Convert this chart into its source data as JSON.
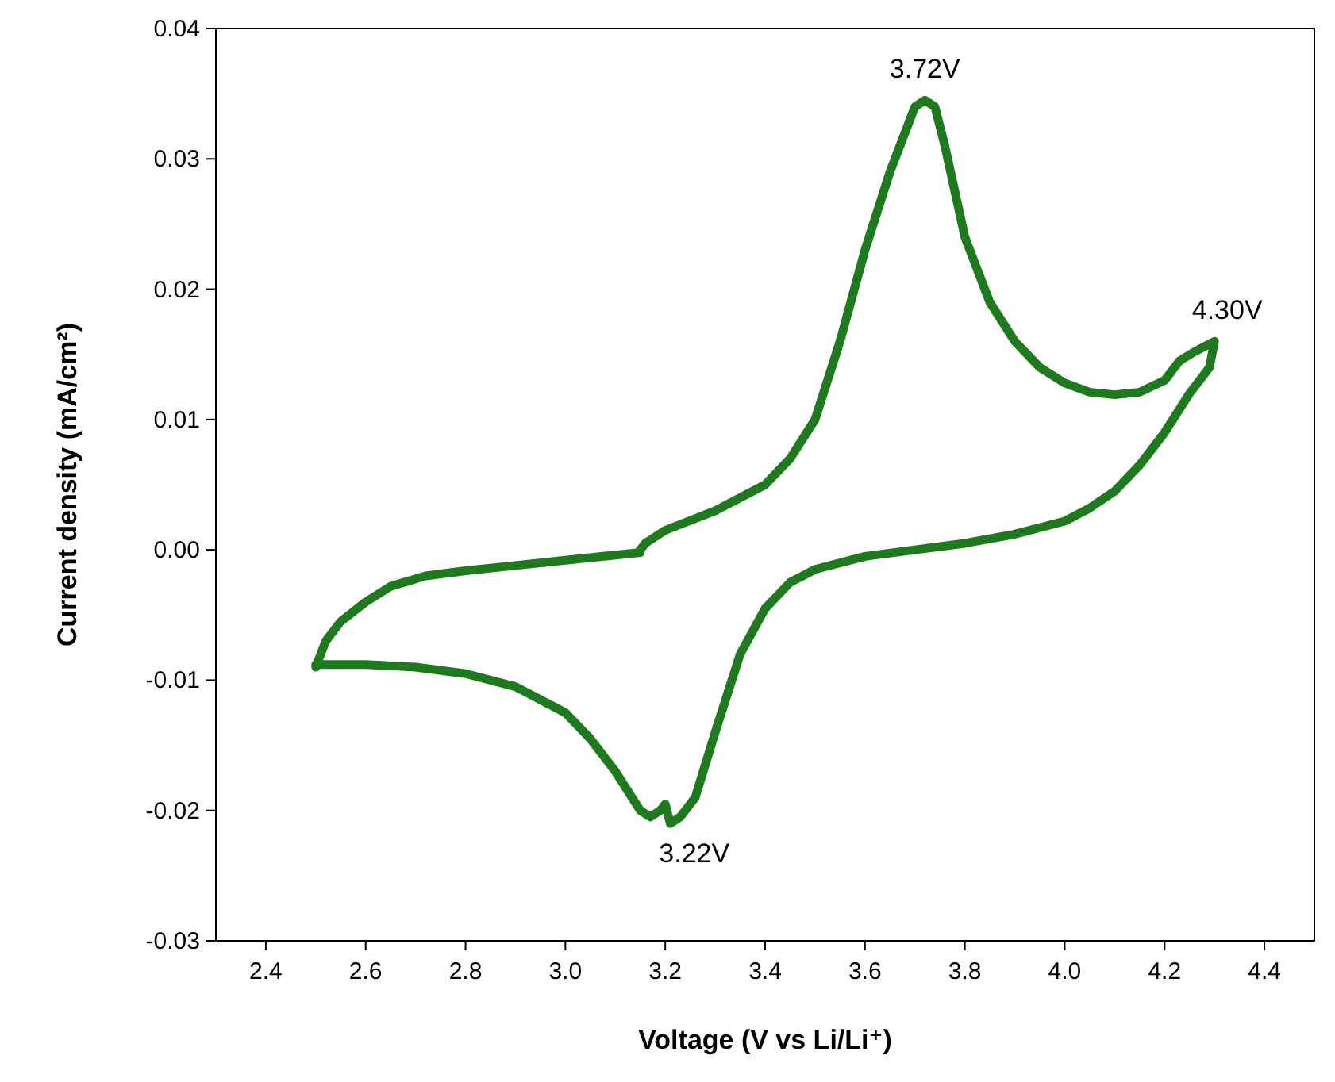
{
  "chart_data": {
    "type": "line",
    "xlabel": "Voltage (V vs Li/Li⁺)",
    "ylabel": "Current density (mA/cm²)",
    "xlim": [
      2.3,
      4.5
    ],
    "ylim": [
      -0.03,
      0.04
    ],
    "xticks": [
      {
        "value": 2.4,
        "label": "2.4"
      },
      {
        "value": 2.6,
        "label": "2.6"
      },
      {
        "value": 2.8,
        "label": "2.8"
      },
      {
        "value": 3.0,
        "label": "3.0"
      },
      {
        "value": 3.2,
        "label": "3.2"
      },
      {
        "value": 3.4,
        "label": "3.4"
      },
      {
        "value": 3.6,
        "label": "3.6"
      },
      {
        "value": 3.8,
        "label": "3.8"
      },
      {
        "value": 4.0,
        "label": "4.0"
      },
      {
        "value": 4.2,
        "label": "4.2"
      },
      {
        "value": 4.4,
        "label": "4.4"
      }
    ],
    "yticks": [
      {
        "value": -0.03,
        "label": "-0.03"
      },
      {
        "value": -0.02,
        "label": "-0.02"
      },
      {
        "value": -0.01,
        "label": "-0.01"
      },
      {
        "value": 0,
        "label": "0.00"
      },
      {
        "value": 0.01,
        "label": "0.01"
      },
      {
        "value": 0.02,
        "label": "0.02"
      },
      {
        "value": 0.03,
        "label": "0.03"
      },
      {
        "value": 0.04,
        "label": "0.04"
      }
    ],
    "grid": false,
    "marker": "none",
    "line_style": "solid",
    "annotations": [
      {
        "text": "3.72V",
        "x": 3.72,
        "y": 0.0345
      },
      {
        "text": "4.30V",
        "x": 4.3,
        "y": 0.016
      },
      {
        "text": "3.22V",
        "x": 3.22,
        "y": -0.0208
      }
    ],
    "series": [
      {
        "color": "#1f7a1f",
        "x": [
          3.15,
          3.16,
          3.2,
          3.3,
          3.4,
          3.45,
          3.5,
          3.55,
          3.6,
          3.65,
          3.7,
          3.72,
          3.74,
          3.76,
          3.8,
          3.85,
          3.9,
          3.95,
          4.0,
          4.05,
          4.1,
          4.15,
          4.2,
          4.23,
          4.26,
          4.3,
          4.29,
          4.25,
          4.2,
          4.15,
          4.1,
          4.05,
          4.0,
          3.9,
          3.8,
          3.7,
          3.6,
          3.5,
          3.45,
          3.4,
          3.35,
          3.3,
          3.26,
          3.23,
          3.21,
          3.2,
          3.19,
          3.17,
          3.15,
          3.1,
          3.05,
          3.0,
          2.9,
          2.8,
          2.7,
          2.6,
          2.5,
          2.5,
          2.52,
          2.55,
          2.6,
          2.65,
          2.72,
          2.8,
          2.9,
          3.0,
          3.1,
          3.15
        ],
        "values": [
          0.0,
          0.0005,
          0.0015,
          0.003,
          0.005,
          0.007,
          0.01,
          0.016,
          0.023,
          0.029,
          0.034,
          0.0345,
          0.034,
          0.031,
          0.024,
          0.019,
          0.016,
          0.014,
          0.0128,
          0.0121,
          0.0119,
          0.0121,
          0.013,
          0.0145,
          0.0152,
          0.016,
          0.014,
          0.012,
          0.009,
          0.0065,
          0.0045,
          0.0032,
          0.0022,
          0.0012,
          0.0005,
          0.0,
          -0.0005,
          -0.0015,
          -0.0025,
          -0.0045,
          -0.008,
          -0.014,
          -0.019,
          -0.0205,
          -0.021,
          -0.0195,
          -0.02,
          -0.0205,
          -0.02,
          -0.017,
          -0.0145,
          -0.0125,
          -0.0105,
          -0.0095,
          -0.009,
          -0.0088,
          -0.0088,
          -0.009,
          -0.007,
          -0.0055,
          -0.004,
          -0.0028,
          -0.002,
          -0.0016,
          -0.0012,
          -0.0008,
          -0.0004,
          -0.0002
        ]
      }
    ]
  }
}
